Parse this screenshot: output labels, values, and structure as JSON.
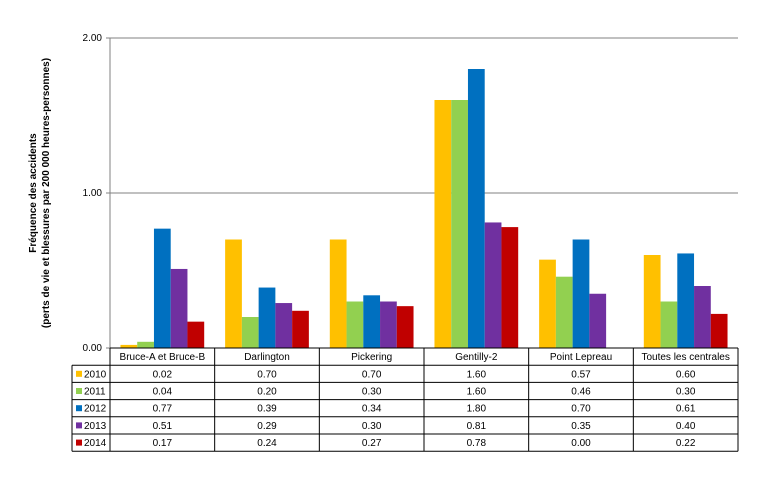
{
  "chart_data": {
    "type": "bar",
    "title": "",
    "xlabel": "",
    "ylabel": "Fréquence des accidents",
    "ylabel_line2": "(perts de vie et blessures par 200 000 heures-personnes)",
    "ylim": [
      0,
      2
    ],
    "yticks": [
      0,
      1,
      2
    ],
    "ytick_labels": [
      "0.00",
      "1.00",
      "2.00"
    ],
    "grid": true,
    "legend": "data-table-left",
    "categories": [
      "Bruce-A et Bruce-B",
      "Darlington",
      "Pickering",
      "Gentilly-2",
      "Point Lepreau",
      "Toutes les centrales"
    ],
    "series": [
      {
        "name": "2010",
        "color": "#FFC000",
        "values": [
          0.02,
          0.7,
          0.7,
          1.6,
          0.57,
          0.6
        ],
        "labels": [
          "0.02",
          "0.70",
          "0.70",
          "1.60",
          "0.57",
          "0.60"
        ]
      },
      {
        "name": "2011",
        "color": "#92D050",
        "values": [
          0.04,
          0.2,
          0.3,
          1.6,
          0.46,
          0.3
        ],
        "labels": [
          "0.04",
          "0.20",
          "0.30",
          "1.60",
          "0.46",
          "0.30"
        ]
      },
      {
        "name": "2012",
        "color": "#0070C0",
        "values": [
          0.77,
          0.39,
          0.34,
          1.8,
          0.7,
          0.61
        ],
        "labels": [
          "0.77",
          "0.39",
          "0.34",
          "1.80",
          "0.70",
          "0.61"
        ]
      },
      {
        "name": "2013",
        "color": "#7030A0",
        "values": [
          0.51,
          0.29,
          0.3,
          0.81,
          0.35,
          0.4
        ],
        "labels": [
          "0.51",
          "0.29",
          "0.30",
          "0.81",
          "0.35",
          "0.40"
        ]
      },
      {
        "name": "2014",
        "color": "#C00000",
        "values": [
          0.17,
          0.24,
          0.27,
          0.78,
          0.0,
          0.22
        ],
        "labels": [
          "0.17",
          "0.24",
          "0.27",
          "0.78",
          "0.00",
          "0.22"
        ]
      }
    ]
  }
}
